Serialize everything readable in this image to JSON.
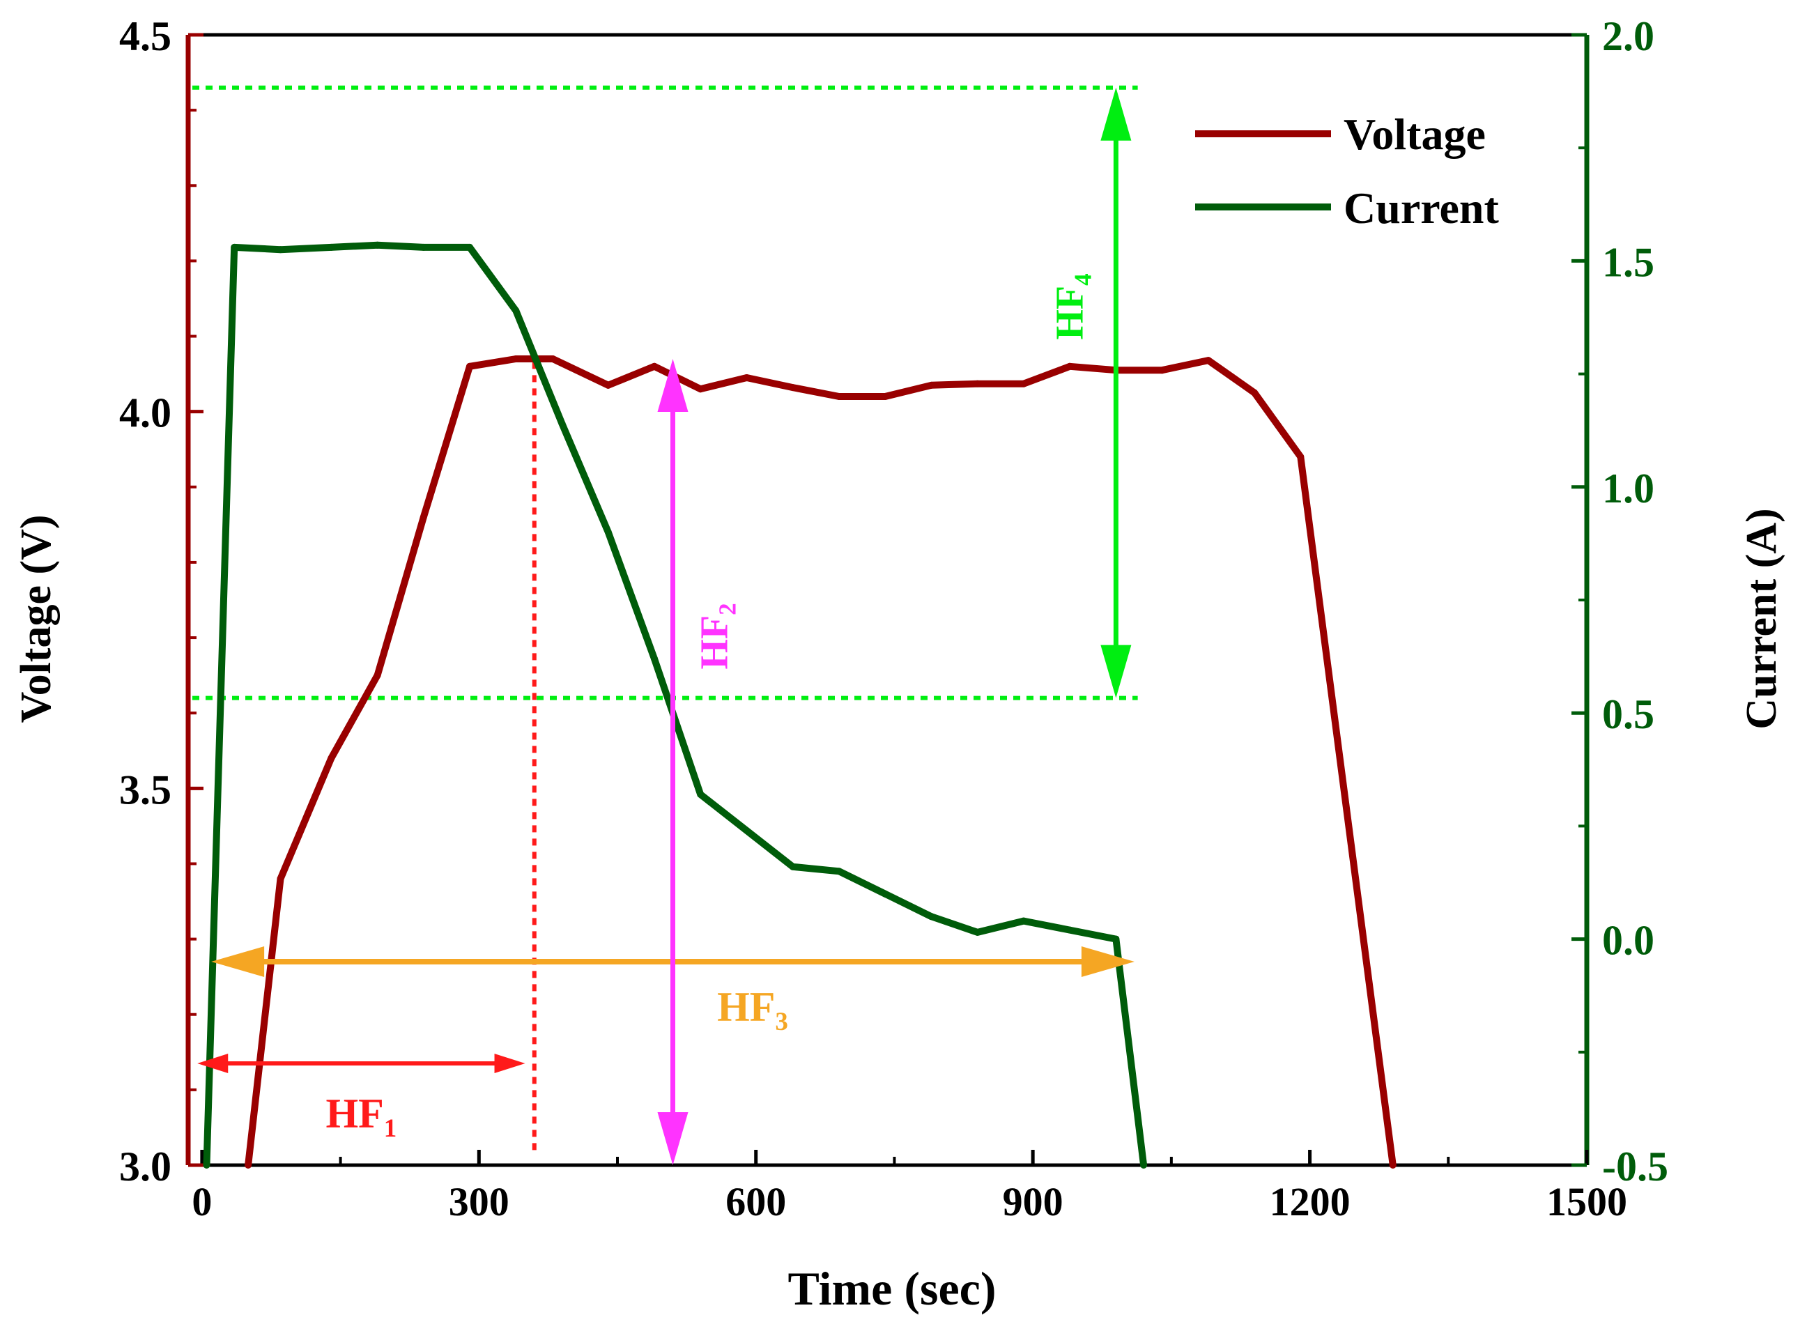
{
  "chart_data": {
    "type": "line",
    "xlabel": "Time (sec)",
    "ylabel_left": "Voltage (V)",
    "ylabel_right": "Current (A)",
    "xlim": [
      -15,
      1500
    ],
    "ylim_left": [
      3.0,
      4.5
    ],
    "ylim_right": [
      -0.5,
      2.0
    ],
    "x_ticks": [
      0,
      300,
      600,
      900,
      1200,
      1500
    ],
    "x_tick_labels": [
      "0",
      "300",
      "600",
      "900",
      "1200",
      "1500"
    ],
    "left_ticks": [
      3.0,
      3.5,
      4.0,
      4.5
    ],
    "left_tick_labels": [
      "3.0",
      "3.5",
      "4.0",
      "4.5"
    ],
    "right_ticks": [
      -0.5,
      0.0,
      0.5,
      1.0,
      1.5,
      2.0
    ],
    "right_tick_labels": [
      "-0.5",
      "0.0",
      "0.5",
      "1.0",
      "1.5",
      "2.0"
    ],
    "legend_position": "top-right",
    "series": [
      {
        "name": "Voltage",
        "axis": "left",
        "color": "#990000",
        "x": [
          50,
          85,
          140,
          190,
          240,
          290,
          340,
          380,
          440,
          490,
          540,
          590,
          640,
          690,
          740,
          790,
          840,
          890,
          940,
          990,
          1040,
          1090,
          1140,
          1190,
          1290
        ],
        "y": [
          3.0,
          3.38,
          3.54,
          3.65,
          3.86,
          4.06,
          4.07,
          4.07,
          4.035,
          4.06,
          4.03,
          4.045,
          4.032,
          4.02,
          4.02,
          4.035,
          4.037,
          4.037,
          4.06,
          4.055,
          4.055,
          4.068,
          4.025,
          3.94,
          3.0
        ]
      },
      {
        "name": "Current",
        "axis": "right",
        "color": "#005c0a",
        "x": [
          5,
          35,
          85,
          140,
          190,
          240,
          290,
          340,
          390,
          440,
          490,
          540,
          590,
          640,
          690,
          740,
          790,
          840,
          890,
          940,
          990,
          1020
        ],
        "y": [
          -0.5,
          1.53,
          1.525,
          1.53,
          1.535,
          1.53,
          1.53,
          1.39,
          1.14,
          0.9,
          0.62,
          0.32,
          0.24,
          0.16,
          0.15,
          0.1,
          0.05,
          0.015,
          0.04,
          0.02,
          0.0,
          -0.5
        ]
      }
    ],
    "annotations": [
      {
        "label": "HF",
        "subscript": "1",
        "color": "#ff1a1a",
        "kind": "horizontal-double-arrow",
        "x_range": [
          -5,
          350
        ]
      },
      {
        "label": "HF",
        "subscript": "2",
        "color": "#ff33ff",
        "kind": "vertical-double-arrow",
        "x": 510,
        "y_range": [
          3.0,
          4.07
        ]
      },
      {
        "label": "HF",
        "subscript": "3",
        "color": "#f5a623",
        "kind": "horizontal-double-arrow",
        "x_range": [
          10,
          1010
        ]
      },
      {
        "label": "HF",
        "subscript": "4",
        "color": "#00ee11",
        "kind": "vertical-double-arrow",
        "x": 990,
        "y_range": [
          3.62,
          4.43
        ]
      }
    ],
    "reference_lines": [
      {
        "kind": "horizontal-dotted",
        "color": "#00ee11",
        "y": 4.43,
        "x_range": [
          -15,
          1000
        ]
      },
      {
        "kind": "horizontal-dotted",
        "color": "#00ee11",
        "y": 3.62,
        "x_range": [
          -15,
          1000
        ]
      },
      {
        "kind": "vertical-dotted",
        "color": "#ff1a1a",
        "x": 360,
        "y_range": [
          3.02,
          4.07
        ]
      }
    ]
  }
}
